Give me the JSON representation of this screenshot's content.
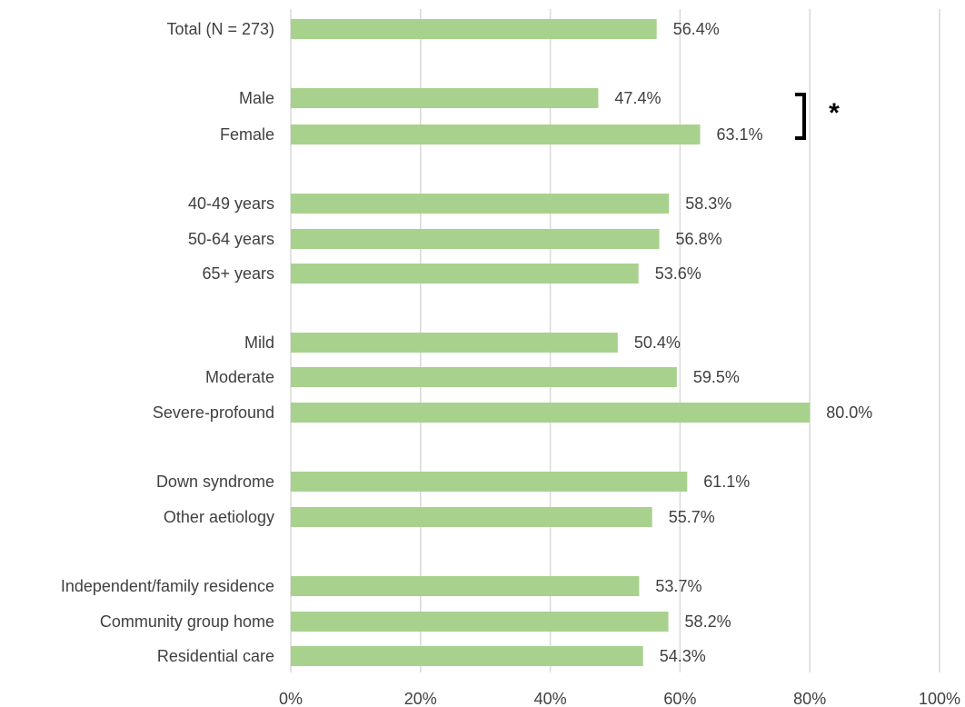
{
  "chart_data": {
    "type": "bar",
    "orientation": "horizontal",
    "title": "",
    "xlabel": "",
    "ylabel": "",
    "xlim": [
      0,
      100
    ],
    "x_ticks": [
      0,
      20,
      40,
      60,
      80,
      100
    ],
    "x_tick_labels": [
      "0%",
      "20%",
      "40%",
      "60%",
      "80%",
      "100%"
    ],
    "grid": "vertical",
    "bar_color": "#a9d18e",
    "categories": [
      "Total (N = 273)",
      "Male",
      "Female",
      "40-49 years",
      "50-64 years",
      "65+ years",
      "Mild",
      "Moderate",
      "Severe-profound",
      "Down syndrome",
      "Other aetiology",
      "Independent/family residence",
      "Community group home",
      "Residential care"
    ],
    "values": [
      56.4,
      47.4,
      63.1,
      58.3,
      56.8,
      53.6,
      50.4,
      59.5,
      80.0,
      61.1,
      55.7,
      53.7,
      58.2,
      54.3
    ],
    "value_labels": [
      "56.4%",
      "47.4%",
      "63.1%",
      "58.3%",
      "56.8%",
      "53.6%",
      "50.4%",
      "59.5%",
      "80.0%",
      "61.1%",
      "55.7%",
      "53.7%",
      "58.2%",
      "54.3%"
    ],
    "groups": [
      [
        0
      ],
      [
        1,
        2
      ],
      [
        3,
        4,
        5
      ],
      [
        6,
        7,
        8
      ],
      [
        9,
        10
      ],
      [
        11,
        12,
        13
      ]
    ],
    "annotations": [
      {
        "text": "*",
        "type": "significance-bracket",
        "between": [
          "Male",
          "Female"
        ]
      }
    ]
  }
}
